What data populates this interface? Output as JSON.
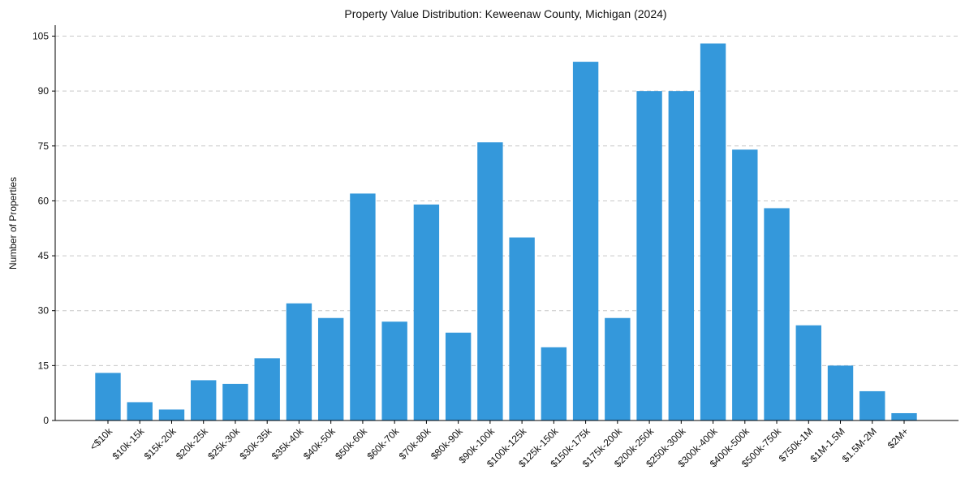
{
  "chart_data": {
    "type": "bar",
    "title": "Property Value Distribution: Keweenaw County, Michigan (2024)",
    "xlabel": "",
    "ylabel": "Number of Properties",
    "categories": [
      "<$10k",
      "$10k-15k",
      "$15k-20k",
      "$20k-25k",
      "$25k-30k",
      "$30k-35k",
      "$35k-40k",
      "$40k-50k",
      "$50k-60k",
      "$60k-70k",
      "$70k-80k",
      "$80k-90k",
      "$90k-100k",
      "$100k-125k",
      "$125k-150k",
      "$150k-175k",
      "$175k-200k",
      "$200k-250k",
      "$250k-300k",
      "$300k-400k",
      "$400k-500k",
      "$500k-750k",
      "$750k-1M",
      "$1M-1.5M",
      "$1.5M-2M",
      "$2M+"
    ],
    "values": [
      13,
      5,
      3,
      11,
      10,
      17,
      32,
      28,
      62,
      27,
      59,
      24,
      76,
      50,
      20,
      98,
      28,
      90,
      90,
      103,
      74,
      58,
      26,
      15,
      8,
      2
    ],
    "ylim": [
      0,
      108
    ],
    "yticks": [
      0,
      15,
      30,
      45,
      60,
      75,
      90,
      105
    ],
    "grid": "horizontal dashed",
    "colors": {
      "bar": "#3498db",
      "grid": "#c8c8c8",
      "axis": "#000000"
    }
  }
}
